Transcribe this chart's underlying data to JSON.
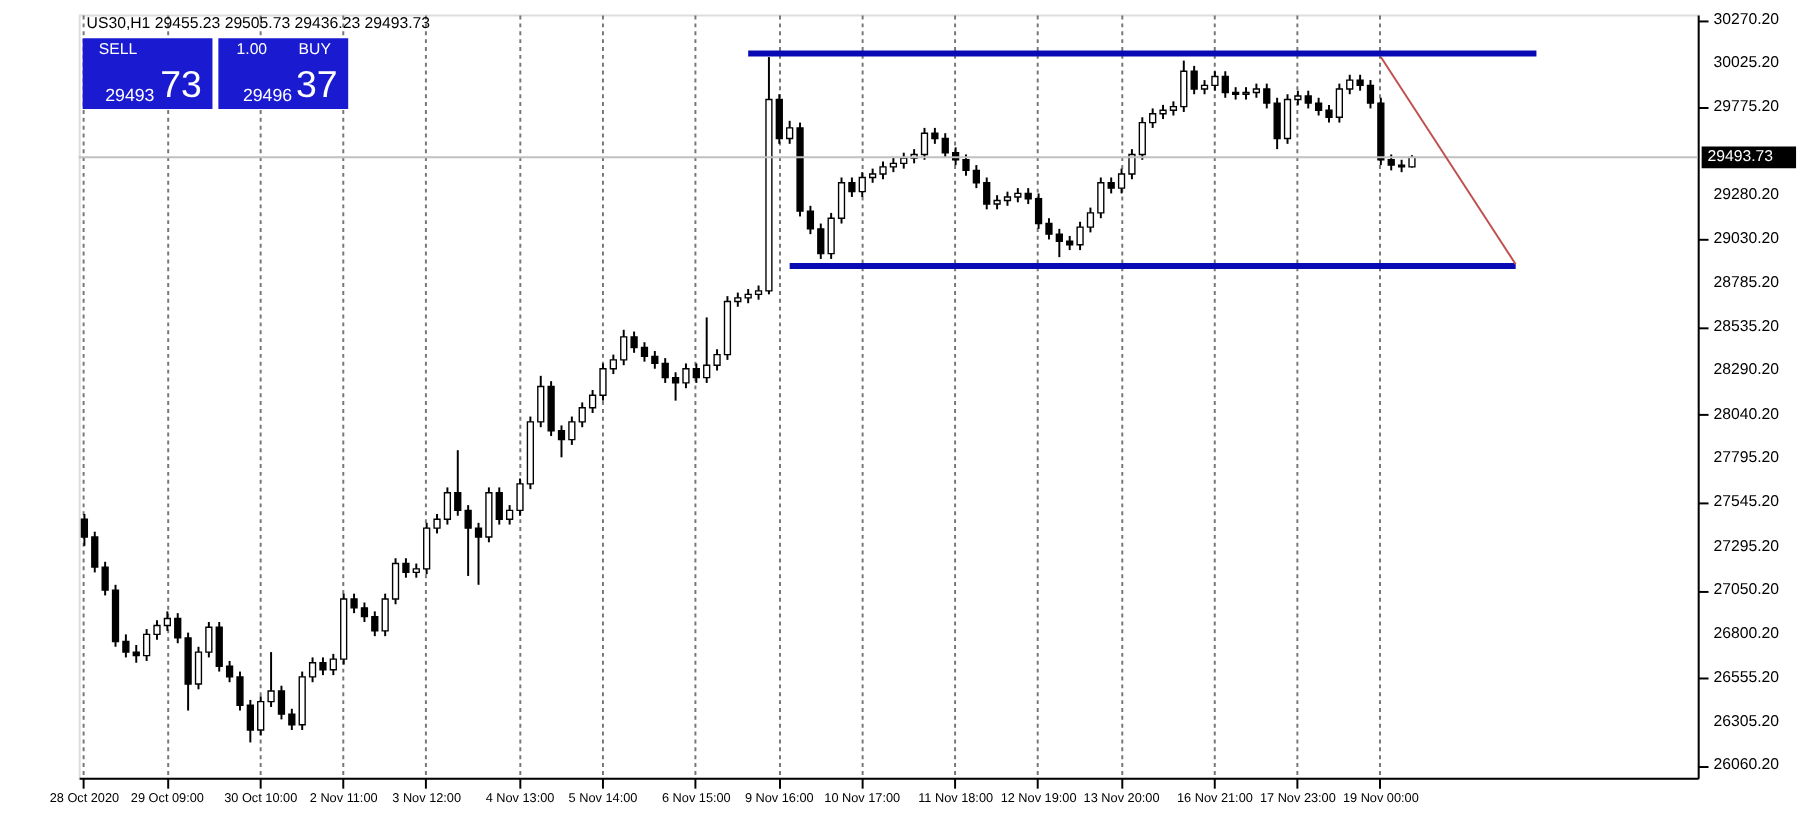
{
  "chart_data": {
    "type": "candlestick",
    "title": "US30,H1  29455.23 29505.73 29436.23 29493.73",
    "annotations": [
      "SELL",
      "1.00",
      "BUY",
      "29493",
      "73",
      "29496",
      "37"
    ],
    "categories": [
      "28 Oct 2020",
      null,
      null,
      null,
      null,
      null,
      null,
      null,
      "29 Oct 09:00",
      null,
      null,
      null,
      null,
      null,
      null,
      null,
      null,
      "30 Oct 10:00",
      null,
      null,
      null,
      null,
      null,
      null,
      null,
      "2 Nov 11:00",
      null,
      null,
      null,
      null,
      null,
      null,
      null,
      "3 Nov 12:00",
      null,
      null,
      null,
      null,
      null,
      null,
      null,
      null,
      "4 Nov 13:00",
      null,
      null,
      null,
      null,
      null,
      null,
      null,
      "5 Nov 14:00",
      null,
      null,
      null,
      null,
      null,
      null,
      null,
      null,
      "6 Nov 15:00",
      null,
      null,
      null,
      null,
      null,
      null,
      null,
      "9 Nov 16:00",
      null,
      null,
      null,
      null,
      null,
      null,
      null,
      "10 Nov 17:00",
      null,
      null,
      null,
      null,
      null,
      null,
      null,
      null,
      "11 Nov 18:00",
      null,
      null,
      null,
      null,
      null,
      null,
      null,
      "12 Nov 19:00",
      null,
      null,
      null,
      null,
      null,
      null,
      null,
      "13 Nov 20:00",
      null,
      null,
      null,
      null,
      null,
      null,
      null,
      null,
      "16 Nov 21:00",
      null,
      null,
      null,
      null,
      null,
      null,
      null,
      "17 Nov 23:00",
      null,
      null,
      null,
      null,
      null,
      null,
      null,
      "19 Nov 00:00",
      null,
      null,
      null,
      null,
      null,
      null,
      null,
      null,
      null,
      null,
      null,
      null,
      null,
      null,
      null,
      null,
      null,
      null,
      null,
      null,
      null,
      null,
      null,
      null,
      null,
      null,
      null,
      null,
      null,
      null
    ],
    "series": [
      {
        "type": "candlestick",
        "color": "#000000",
        "ohlc": [
          [
            27450,
            27480,
            27300,
            27350
          ],
          [
            27350,
            27380,
            27150,
            27180
          ],
          [
            27180,
            27210,
            27020,
            27050
          ],
          [
            27050,
            27080,
            26730,
            26760
          ],
          [
            26760,
            26800,
            26670,
            26700
          ],
          [
            26700,
            26740,
            26640,
            26680
          ],
          [
            26680,
            26830,
            26650,
            26800
          ],
          [
            26800,
            26880,
            26770,
            26850
          ],
          [
            26850,
            26930,
            26820,
            26890
          ],
          [
            26890,
            26920,
            26750,
            26780
          ],
          [
            26780,
            26810,
            26370,
            26520
          ],
          [
            26520,
            26730,
            26490,
            26700
          ],
          [
            26700,
            26870,
            26670,
            26840
          ],
          [
            26840,
            26870,
            26590,
            26620
          ],
          [
            26620,
            26650,
            26530,
            26560
          ],
          [
            26560,
            26590,
            26370,
            26400
          ],
          [
            26400,
            26430,
            26190,
            26260
          ],
          [
            26260,
            26450,
            26230,
            26420
          ],
          [
            26420,
            26700,
            26390,
            26480
          ],
          [
            26480,
            26510,
            26320,
            26350
          ],
          [
            26350,
            26380,
            26260,
            26290
          ],
          [
            26290,
            26590,
            26260,
            26560
          ],
          [
            26560,
            26670,
            26530,
            26640
          ],
          [
            26640,
            26670,
            26570,
            26600
          ],
          [
            26600,
            26690,
            26570,
            26660
          ],
          [
            26660,
            27030,
            26630,
            27000
          ],
          [
            27000,
            27030,
            26920,
            26950
          ],
          [
            26950,
            26980,
            26870,
            26900
          ],
          [
            26900,
            26930,
            26790,
            26820
          ],
          [
            26820,
            27030,
            26790,
            27000
          ],
          [
            27000,
            27230,
            26970,
            27200
          ],
          [
            27200,
            27230,
            27120,
            27150
          ],
          [
            27150,
            27200,
            27120,
            27170
          ],
          [
            27170,
            27430,
            27140,
            27400
          ],
          [
            27400,
            27480,
            27370,
            27450
          ],
          [
            27450,
            27630,
            27420,
            27600
          ],
          [
            27600,
            27840,
            27470,
            27500
          ],
          [
            27500,
            27530,
            27130,
            27400
          ],
          [
            27400,
            27430,
            27080,
            27350
          ],
          [
            27350,
            27630,
            27320,
            27600
          ],
          [
            27600,
            27630,
            27420,
            27450
          ],
          [
            27450,
            27530,
            27420,
            27500
          ],
          [
            27500,
            27680,
            27470,
            27650
          ],
          [
            27650,
            28030,
            27620,
            28000
          ],
          [
            28000,
            28260,
            27970,
            28200
          ],
          [
            28200,
            28230,
            27920,
            27950
          ],
          [
            27950,
            27980,
            27800,
            27900
          ],
          [
            27900,
            28030,
            27870,
            28000
          ],
          [
            28000,
            28110,
            27970,
            28080
          ],
          [
            28080,
            28180,
            28050,
            28150
          ],
          [
            28150,
            28330,
            28120,
            28300
          ],
          [
            28300,
            28380,
            28270,
            28350
          ],
          [
            28350,
            28520,
            28320,
            28480
          ],
          [
            28480,
            28510,
            28390,
            28420
          ],
          [
            28420,
            28450,
            28340,
            28370
          ],
          [
            28370,
            28400,
            28300,
            28330
          ],
          [
            28330,
            28360,
            28220,
            28250
          ],
          [
            28250,
            28280,
            28120,
            28220
          ],
          [
            28220,
            28330,
            28190,
            28300
          ],
          [
            28300,
            28330,
            28220,
            28250
          ],
          [
            28250,
            28590,
            28220,
            28320
          ],
          [
            28320,
            28410,
            28290,
            28380
          ],
          [
            28380,
            28710,
            28350,
            28680
          ],
          [
            28680,
            28730,
            28650,
            28700
          ],
          [
            28700,
            28750,
            28670,
            28720
          ],
          [
            28720,
            28770,
            28690,
            28740
          ],
          [
            28740,
            30060,
            28720,
            29820
          ],
          [
            29820,
            29850,
            29570,
            29600
          ],
          [
            29600,
            29700,
            29570,
            29660
          ],
          [
            29660,
            29690,
            29160,
            29190
          ],
          [
            29190,
            29220,
            29060,
            29090
          ],
          [
            29090,
            29120,
            28920,
            28950
          ],
          [
            28950,
            29180,
            28920,
            29150
          ],
          [
            29150,
            29380,
            29120,
            29350
          ],
          [
            29350,
            29380,
            29270,
            29300
          ],
          [
            29300,
            29410,
            29270,
            29380
          ],
          [
            29380,
            29430,
            29350,
            29400
          ],
          [
            29400,
            29470,
            29370,
            29440
          ],
          [
            29440,
            29490,
            29410,
            29460
          ],
          [
            29460,
            29520,
            29430,
            29490
          ],
          [
            29490,
            29540,
            29460,
            29510
          ],
          [
            29510,
            29660,
            29480,
            29630
          ],
          [
            29630,
            29660,
            29570,
            29600
          ],
          [
            29600,
            29630,
            29490,
            29520
          ],
          [
            29520,
            29550,
            29450,
            29480
          ],
          [
            29480,
            29510,
            29390,
            29420
          ],
          [
            29420,
            29450,
            29320,
            29350
          ],
          [
            29350,
            29380,
            29200,
            29230
          ],
          [
            29230,
            29280,
            29200,
            29250
          ],
          [
            29250,
            29300,
            29220,
            29270
          ],
          [
            29270,
            29320,
            29240,
            29290
          ],
          [
            29290,
            29320,
            29230,
            29260
          ],
          [
            29260,
            29290,
            29090,
            29120
          ],
          [
            29120,
            29150,
            29030,
            29060
          ],
          [
            29060,
            29090,
            28930,
            29020
          ],
          [
            29020,
            29050,
            28970,
            29000
          ],
          [
            29000,
            29130,
            28970,
            29100
          ],
          [
            29100,
            29210,
            29070,
            29180
          ],
          [
            29180,
            29380,
            29150,
            29350
          ],
          [
            29350,
            29380,
            29290,
            29320
          ],
          [
            29320,
            29430,
            29290,
            29400
          ],
          [
            29400,
            29540,
            29370,
            29510
          ],
          [
            29510,
            29720,
            29480,
            29690
          ],
          [
            29690,
            29770,
            29660,
            29740
          ],
          [
            29740,
            29790,
            29710,
            29760
          ],
          [
            29760,
            29810,
            29730,
            29780
          ],
          [
            29780,
            30040,
            29750,
            29980
          ],
          [
            29980,
            30010,
            29850,
            29880
          ],
          [
            29880,
            29930,
            29850,
            29900
          ],
          [
            29900,
            29980,
            29870,
            29950
          ],
          [
            29950,
            29980,
            29830,
            29860
          ],
          [
            29860,
            29890,
            29820,
            29850
          ],
          [
            29850,
            29890,
            29820,
            29860
          ],
          [
            29860,
            29910,
            29830,
            29880
          ],
          [
            29880,
            29910,
            29770,
            29800
          ],
          [
            29800,
            29830,
            29540,
            29600
          ],
          [
            29600,
            29850,
            29570,
            29820
          ],
          [
            29820,
            29870,
            29790,
            29840
          ],
          [
            29840,
            29870,
            29770,
            29800
          ],
          [
            29800,
            29830,
            29730,
            29760
          ],
          [
            29760,
            29790,
            29690,
            29720
          ],
          [
            29720,
            29910,
            29690,
            29880
          ],
          [
            29880,
            29960,
            29850,
            29930
          ],
          [
            29930,
            29960,
            29870,
            29900
          ],
          [
            29900,
            29930,
            29770,
            29800
          ],
          [
            29800,
            29830,
            29450,
            29480
          ],
          [
            29480,
            29510,
            29420,
            29450
          ],
          [
            29450,
            29480,
            29410,
            29440
          ],
          [
            29440,
            29506,
            29436,
            29493.73
          ],
          null,
          null,
          null,
          null,
          null,
          null,
          null,
          null,
          null,
          null,
          null,
          null,
          null,
          null,
          null,
          null,
          null,
          null,
          null,
          null,
          null,
          null,
          null,
          null,
          null,
          null,
          null
        ]
      },
      {
        "type": "line",
        "color": "#0a0ab4",
        "values": [
          null,
          null,
          null,
          null,
          null,
          null,
          null,
          null,
          null,
          null,
          null,
          null,
          null,
          null,
          null,
          null,
          null,
          null,
          null,
          null,
          null,
          null,
          null,
          null,
          null,
          null,
          null,
          null,
          null,
          null,
          null,
          null,
          null,
          null,
          null,
          null,
          null,
          null,
          null,
          null,
          null,
          null,
          null,
          null,
          null,
          null,
          null,
          null,
          null,
          null,
          null,
          null,
          null,
          null,
          null,
          null,
          null,
          null,
          null,
          null,
          null,
          null,
          null,
          null,
          30080,
          null,
          null,
          null,
          null,
          null,
          null,
          null,
          null,
          null,
          null,
          null,
          null,
          null,
          null,
          null,
          null,
          null,
          null,
          null,
          null,
          null,
          null,
          null,
          null,
          null,
          null,
          null,
          null,
          null,
          null,
          null,
          null,
          null,
          null,
          null,
          null,
          null,
          null,
          null,
          null,
          null,
          null,
          null,
          null,
          null,
          null,
          null,
          null,
          null,
          null,
          null,
          null,
          null,
          null,
          null,
          null,
          null,
          null,
          null,
          null,
          null,
          null,
          null,
          null,
          null,
          null,
          null,
          null,
          null,
          null,
          null,
          null,
          null,
          null,
          null,
          30080,
          null,
          null,
          null,
          null,
          null,
          null,
          null,
          null,
          null,
          null,
          null,
          null,
          null,
          null,
          null
        ]
      },
      {
        "type": "line",
        "color": "#0a0ab4",
        "values": [
          null,
          null,
          null,
          null,
          null,
          null,
          null,
          null,
          null,
          null,
          null,
          null,
          null,
          null,
          null,
          null,
          null,
          null,
          null,
          null,
          null,
          null,
          null,
          null,
          null,
          null,
          null,
          null,
          null,
          null,
          null,
          null,
          null,
          null,
          null,
          null,
          null,
          null,
          null,
          null,
          null,
          null,
          null,
          null,
          null,
          null,
          null,
          null,
          null,
          null,
          null,
          null,
          null,
          null,
          null,
          null,
          null,
          null,
          null,
          null,
          null,
          null,
          null,
          null,
          null,
          null,
          null,
          null,
          28880,
          null,
          null,
          null,
          null,
          null,
          null,
          null,
          null,
          null,
          null,
          null,
          null,
          null,
          null,
          null,
          null,
          null,
          null,
          null,
          null,
          null,
          null,
          null,
          null,
          null,
          null,
          null,
          null,
          null,
          null,
          null,
          null,
          null,
          null,
          null,
          null,
          null,
          null,
          null,
          null,
          null,
          null,
          null,
          null,
          null,
          null,
          null,
          null,
          null,
          null,
          null,
          null,
          null,
          null,
          null,
          null,
          null,
          null,
          null,
          null,
          null,
          null,
          null,
          null,
          null,
          null,
          null,
          null,
          null,
          28880,
          null,
          null,
          null,
          null,
          null,
          null,
          null,
          null,
          null,
          null,
          null,
          null,
          null,
          null,
          null,
          null,
          null
        ]
      },
      {
        "type": "line",
        "color": "#c0504d",
        "values": [
          null,
          null,
          null,
          null,
          null,
          null,
          null,
          null,
          null,
          null,
          null,
          null,
          null,
          null,
          null,
          null,
          null,
          null,
          null,
          null,
          null,
          null,
          null,
          null,
          null,
          null,
          null,
          null,
          null,
          null,
          null,
          null,
          null,
          null,
          null,
          null,
          null,
          null,
          null,
          null,
          null,
          null,
          null,
          null,
          null,
          null,
          null,
          null,
          null,
          null,
          null,
          null,
          null,
          null,
          null,
          null,
          null,
          null,
          null,
          null,
          null,
          null,
          null,
          null,
          null,
          null,
          null,
          null,
          null,
          null,
          null,
          null,
          null,
          null,
          null,
          null,
          null,
          null,
          null,
          null,
          null,
          null,
          null,
          null,
          null,
          null,
          null,
          null,
          null,
          null,
          null,
          null,
          null,
          null,
          null,
          null,
          null,
          null,
          null,
          null,
          null,
          null,
          null,
          null,
          null,
          null,
          null,
          null,
          null,
          null,
          null,
          null,
          null,
          null,
          null,
          null,
          null,
          null,
          null,
          null,
          null,
          null,
          null,
          null,
          null,
          30060,
          null,
          null,
          null,
          null,
          null,
          null,
          null,
          null,
          null,
          null,
          null,
          null,
          28890,
          null,
          null,
          null,
          null,
          null,
          null,
          null,
          null,
          null,
          null,
          null,
          null,
          null,
          null,
          null,
          null,
          null
        ]
      }
    ],
    "ref_lines": [
      {
        "axis": "y",
        "value": 29493.73,
        "label": "29493.73",
        "color": "#c0c0c0"
      }
    ],
    "ylim": [
      25990,
      30300
    ],
    "yticks": [
      {
        "value": 30270.2,
        "label": "30270.20"
      },
      {
        "value": 30025.2,
        "label": "30025.20"
      },
      {
        "value": 29775.2,
        "label": "29775.20"
      },
      {
        "value": 29280.2,
        "label": "29280.20"
      },
      {
        "value": 29030.2,
        "label": "29030.20"
      },
      {
        "value": 28785.2,
        "label": "28785.20"
      },
      {
        "value": 28535.2,
        "label": "28535.20"
      },
      {
        "value": 28290.2,
        "label": "28290.20"
      },
      {
        "value": 28040.2,
        "label": "28040.20"
      },
      {
        "value": 27795.2,
        "label": "27795.20"
      },
      {
        "value": 27545.2,
        "label": "27545.20"
      },
      {
        "value": 27295.2,
        "label": "27295.20"
      },
      {
        "value": 27050.2,
        "label": "27050.20"
      },
      {
        "value": 26800.2,
        "label": "26800.20"
      },
      {
        "value": 26555.2,
        "label": "26555.20"
      },
      {
        "value": 26305.2,
        "label": "26305.20"
      },
      {
        "value": 26060.2,
        "label": "26060.20"
      }
    ],
    "grid": "x",
    "legend": false
  }
}
